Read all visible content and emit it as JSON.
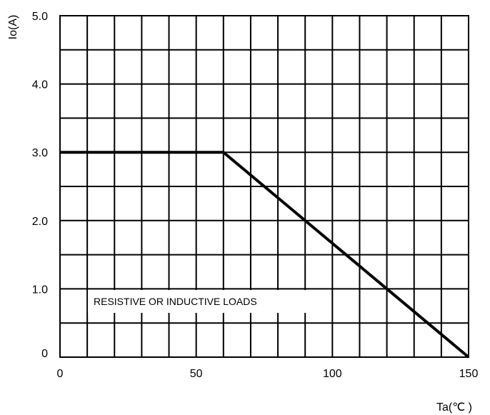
{
  "chart_data": {
    "type": "line",
    "title": "",
    "xlabel": "Ta(℃ )",
    "ylabel": "Io(A)",
    "xlim": [
      0,
      150
    ],
    "ylim": [
      0,
      5
    ],
    "grid": true,
    "x_tick_labels": [
      {
        "value": 0,
        "label": "0"
      },
      {
        "value": 50,
        "label": "50"
      },
      {
        "value": 100,
        "label": "100"
      },
      {
        "value": 150,
        "label": "150"
      }
    ],
    "y_tick_labels": [
      {
        "value": 0,
        "label": "0"
      },
      {
        "value": 1,
        "label": "1.0"
      },
      {
        "value": 2,
        "label": "2.0"
      },
      {
        "value": 3,
        "label": "3.0"
      },
      {
        "value": 4,
        "label": "4.0"
      },
      {
        "value": 5,
        "label": "5.0"
      }
    ],
    "x_gridlines": [
      10,
      20,
      30,
      40,
      50,
      60,
      70,
      80,
      90,
      100,
      110,
      120,
      130,
      140,
      150
    ],
    "y_gridlines": [
      0.5,
      1,
      1.5,
      2,
      2.5,
      3,
      3.5,
      4,
      4.5,
      5
    ],
    "series": [
      {
        "x": [
          0,
          60,
          150
        ],
        "y": [
          3.0,
          3.0,
          0
        ]
      }
    ],
    "annotation": "RESISTIVE OR INDUCTIVE LOADS",
    "colors": {
      "line": "#000000",
      "grid": "#000000"
    }
  }
}
